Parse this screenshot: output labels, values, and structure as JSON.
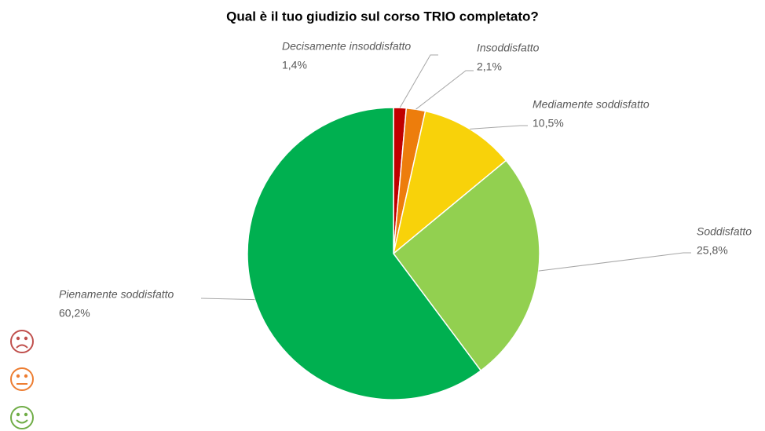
{
  "chart_data": {
    "type": "pie",
    "title": "Qual è il tuo giudizio sul corso TRIO completato?",
    "categories": [
      "Decisamente insoddisfatto",
      "Insoddisfatto",
      "Mediamente soddisfatto",
      "Soddisfatto",
      "Pienamente soddisfatto"
    ],
    "values": [
      1.4,
      2.1,
      10.5,
      25.8,
      60.2
    ],
    "value_labels": [
      "1,4%",
      "2,1%",
      "10,5%",
      "25,8%",
      "60,2%"
    ],
    "colors": [
      "#c00000",
      "#ed7d0c",
      "#f8d20a",
      "#92d050",
      "#00b050"
    ]
  }
}
